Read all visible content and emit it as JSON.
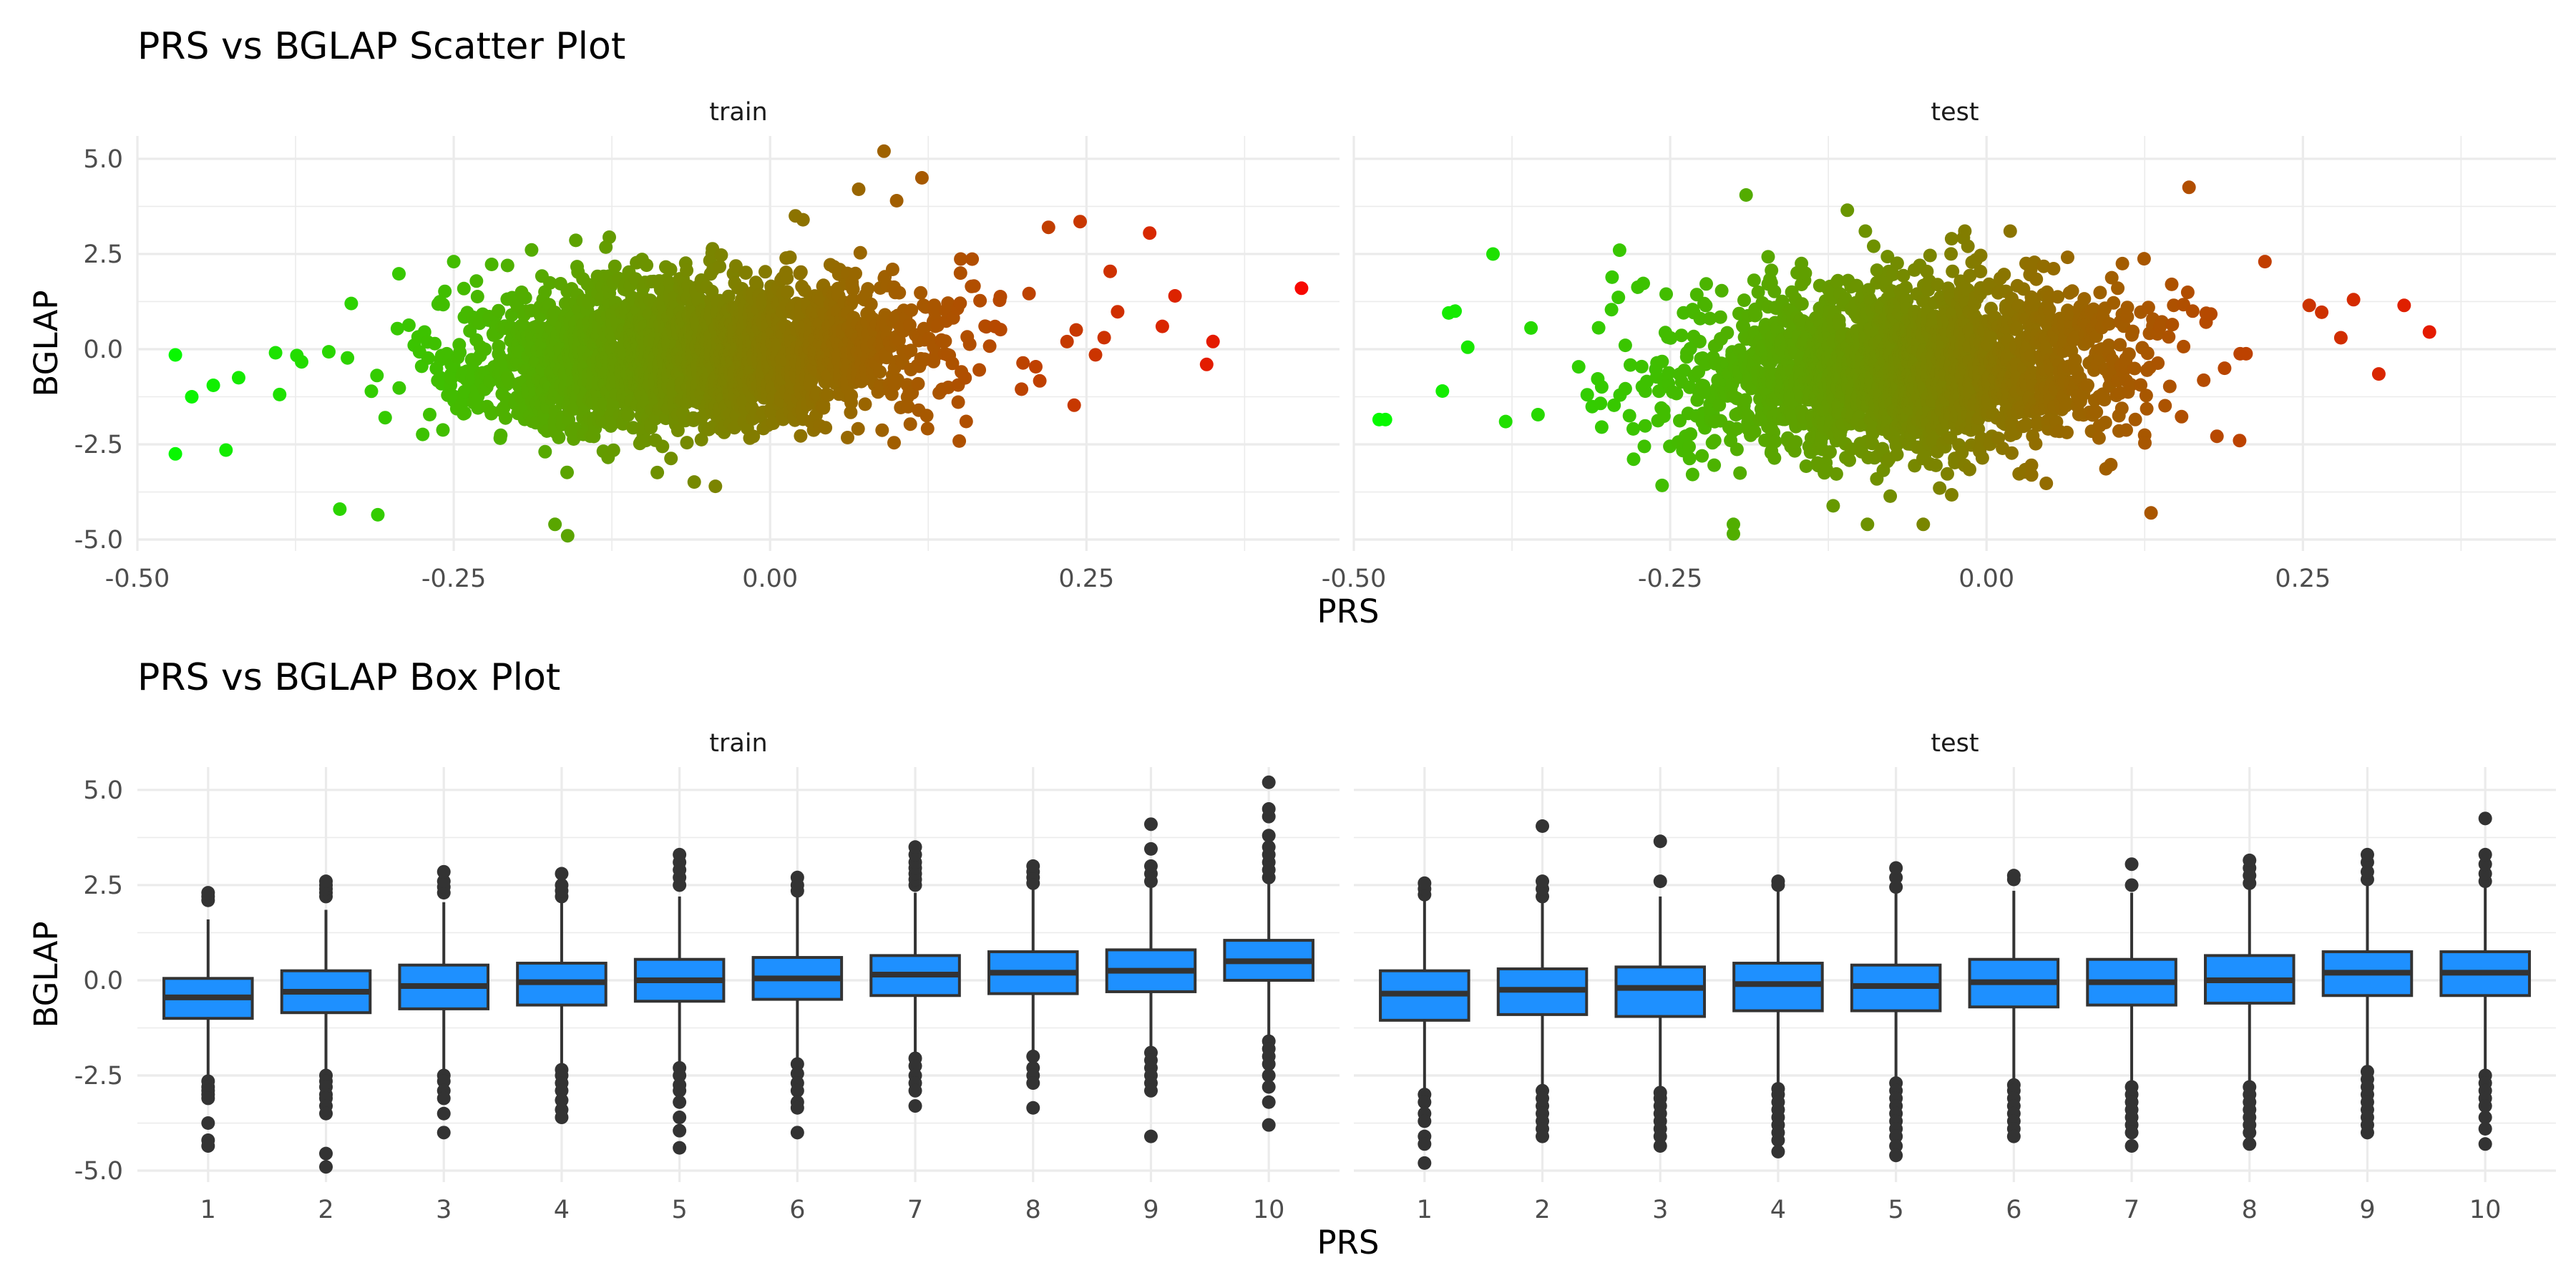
{
  "chart_data": [
    {
      "type": "scatter",
      "title": "PRS vs BGLAP Scatter Plot",
      "xlabel": "PRS",
      "ylabel": "BGLAP",
      "xlim": [
        -0.5,
        0.45
      ],
      "ylim": [
        -5.3,
        5.6
      ],
      "x_ticks": [
        "-0.50",
        "-0.25",
        "0.00",
        "0.25"
      ],
      "y_ticks": [
        "-5.0",
        "-2.5",
        "0.0",
        "2.5",
        "5.0"
      ],
      "grid": true,
      "color_scale": {
        "low": "#00ff00",
        "high": "#ff0000",
        "mapped_to": "PRS",
        "legend": "none"
      },
      "facets": [
        {
          "label": "train",
          "cloud": {
            "n": 2600,
            "x_mean": -0.06,
            "x_sd": 0.095,
            "x_min": -0.4,
            "x_max": 0.33,
            "y_intercept": 0.0,
            "y_slope": 1.6,
            "y_sd": 0.95,
            "y_min": -4.2,
            "y_max": 3.4
          },
          "points": [
            {
              "x": -0.47,
              "y": -0.15
            },
            {
              "x": -0.47,
              "y": -2.75
            },
            {
              "x": -0.457,
              "y": -1.25
            },
            {
              "x": -0.43,
              "y": -2.65
            },
            {
              "x": -0.44,
              "y": -0.95
            },
            {
              "x": -0.42,
              "y": -0.75
            },
            {
              "x": -0.31,
              "y": -4.35
            },
            {
              "x": -0.34,
              "y": -4.2
            },
            {
              "x": -0.17,
              "y": -4.6
            },
            {
              "x": -0.16,
              "y": -4.9
            },
            {
              "x": 0.09,
              "y": 5.2
            },
            {
              "x": 0.12,
              "y": 4.5
            },
            {
              "x": 0.07,
              "y": 4.2
            },
            {
              "x": 0.1,
              "y": 3.9
            },
            {
              "x": 0.42,
              "y": 1.6
            },
            {
              "x": 0.35,
              "y": 0.2
            },
            {
              "x": 0.345,
              "y": -0.4
            },
            {
              "x": 0.3,
              "y": 3.05
            },
            {
              "x": 0.32,
              "y": 1.4
            },
            {
              "x": 0.31,
              "y": 0.6
            },
            {
              "x": 0.245,
              "y": 3.35
            },
            {
              "x": 0.22,
              "y": 3.2
            },
            {
              "x": -0.25,
              "y": 2.3
            },
            {
              "x": 0.02,
              "y": 3.5
            }
          ]
        },
        {
          "label": "test",
          "cloud": {
            "n": 2400,
            "x_mean": -0.07,
            "x_sd": 0.085,
            "x_min": -0.36,
            "x_max": 0.27,
            "y_intercept": -0.35,
            "y_slope": 1.9,
            "y_sd": 1.1,
            "y_min": -4.6,
            "y_max": 3.1
          },
          "points": [
            {
              "x": -0.48,
              "y": -1.85
            },
            {
              "x": -0.475,
              "y": -1.85
            },
            {
              "x": -0.43,
              "y": -1.1
            },
            {
              "x": -0.42,
              "y": 1.0
            },
            {
              "x": -0.425,
              "y": 0.95
            },
            {
              "x": -0.41,
              "y": 0.05
            },
            {
              "x": -0.38,
              "y": -1.9
            },
            {
              "x": -0.39,
              "y": 2.5
            },
            {
              "x": -0.29,
              "y": 2.6
            },
            {
              "x": -0.19,
              "y": 4.05
            },
            {
              "x": -0.11,
              "y": 3.65
            },
            {
              "x": 0.16,
              "y": 4.25
            },
            {
              "x": 0.35,
              "y": 0.45
            },
            {
              "x": 0.33,
              "y": 1.15
            },
            {
              "x": 0.31,
              "y": -0.65
            },
            {
              "x": 0.29,
              "y": 1.3
            },
            {
              "x": 0.28,
              "y": 0.3
            },
            {
              "x": 0.255,
              "y": 1.15
            },
            {
              "x": -0.2,
              "y": -4.85
            },
            {
              "x": -0.2,
              "y": -4.6
            },
            {
              "x": -0.05,
              "y": -4.6
            },
            {
              "x": 0.13,
              "y": -4.3
            },
            {
              "x": 0.22,
              "y": 2.3
            },
            {
              "x": 0.2,
              "y": -2.4
            }
          ]
        }
      ]
    },
    {
      "type": "box",
      "title": "PRS vs BGLAP Box Plot",
      "xlabel": "PRS",
      "ylabel": "BGLAP",
      "categories": [
        "1",
        "2",
        "3",
        "4",
        "5",
        "6",
        "7",
        "8",
        "9",
        "10"
      ],
      "ylim": [
        -5.3,
        5.6
      ],
      "y_ticks": [
        "-5.0",
        "-2.5",
        "0.0",
        "2.5",
        "5.0"
      ],
      "grid": true,
      "box_color": "#1e90ff",
      "line_color": "#333333",
      "facets": [
        {
          "label": "train",
          "boxes": [
            {
              "q1": -1.0,
              "median": -0.45,
              "q3": 0.05,
              "lower": -2.55,
              "upper": 1.6,
              "outliers": [
                -2.65,
                -2.8,
                -2.9,
                -3.0,
                -3.1,
                -3.75,
                -4.2,
                -4.35,
                2.1,
                2.2,
                2.3
              ]
            },
            {
              "q1": -0.85,
              "median": -0.3,
              "q3": 0.25,
              "lower": -2.45,
              "upper": 1.85,
              "outliers": [
                -2.5,
                -2.65,
                -2.8,
                -3.0,
                -3.1,
                -3.3,
                -3.5,
                -4.55,
                -4.9,
                2.2,
                2.3,
                2.4,
                2.5,
                2.6
              ]
            },
            {
              "q1": -0.75,
              "median": -0.15,
              "q3": 0.4,
              "lower": -2.4,
              "upper": 2.05,
              "outliers": [
                -2.5,
                -2.65,
                -2.9,
                -3.1,
                -3.5,
                -4.0,
                2.3,
                2.45,
                2.6,
                2.85
              ]
            },
            {
              "q1": -0.65,
              "median": -0.05,
              "q3": 0.45,
              "lower": -2.3,
              "upper": 2.1,
              "outliers": [
                -2.35,
                -2.5,
                -2.7,
                -2.9,
                -3.15,
                -3.4,
                -3.6,
                2.2,
                2.35,
                2.5,
                2.8
              ]
            },
            {
              "q1": -0.55,
              "median": 0.0,
              "q3": 0.55,
              "lower": -2.2,
              "upper": 2.2,
              "outliers": [
                -2.3,
                -2.5,
                -2.75,
                -2.9,
                -3.2,
                -3.6,
                -3.95,
                -4.4,
                2.5,
                2.7,
                2.9,
                3.1,
                3.3
              ]
            },
            {
              "q1": -0.5,
              "median": 0.05,
              "q3": 0.6,
              "lower": -2.1,
              "upper": 2.25,
              "outliers": [
                -2.2,
                -2.45,
                -2.7,
                -2.9,
                -3.2,
                -3.35,
                -4.0,
                2.35,
                2.5,
                2.7
              ]
            },
            {
              "q1": -0.4,
              "median": 0.15,
              "q3": 0.65,
              "lower": -1.95,
              "upper": 2.3,
              "outliers": [
                -2.05,
                -2.25,
                -2.5,
                -2.7,
                -2.9,
                -3.3,
                2.5,
                2.65,
                2.8,
                2.95,
                3.1,
                3.3,
                3.5
              ]
            },
            {
              "q1": -0.35,
              "median": 0.2,
              "q3": 0.75,
              "lower": -1.9,
              "upper": 2.4,
              "outliers": [
                -2.0,
                -2.3,
                -2.5,
                -2.7,
                -3.35,
                2.55,
                2.7,
                2.85,
                3.0
              ]
            },
            {
              "q1": -0.3,
              "median": 0.25,
              "q3": 0.8,
              "lower": -1.8,
              "upper": 2.45,
              "outliers": [
                -1.9,
                -2.1,
                -2.3,
                -2.5,
                -2.7,
                -2.9,
                -4.1,
                2.6,
                2.8,
                3.0,
                3.45,
                4.1
              ]
            },
            {
              "q1": 0.0,
              "median": 0.5,
              "q3": 1.05,
              "lower": -1.5,
              "upper": 2.6,
              "outliers": [
                -1.6,
                -1.8,
                -2.0,
                -2.2,
                -2.5,
                -2.8,
                -3.2,
                -3.8,
                2.7,
                2.9,
                3.1,
                3.3,
                3.5,
                3.8,
                4.3,
                4.5,
                5.2
              ]
            }
          ]
        },
        {
          "label": "test",
          "boxes": [
            {
              "q1": -1.05,
              "median": -0.35,
              "q3": 0.25,
              "lower": -2.9,
              "upper": 2.1,
              "outliers": [
                -3.0,
                -3.2,
                -3.5,
                -3.7,
                -4.1,
                -4.3,
                -4.8,
                2.25,
                2.4,
                2.55
              ]
            },
            {
              "q1": -0.9,
              "median": -0.25,
              "q3": 0.3,
              "lower": -2.8,
              "upper": 2.05,
              "outliers": [
                -2.9,
                -3.1,
                -3.3,
                -3.5,
                -3.7,
                -3.9,
                -4.1,
                2.2,
                2.4,
                2.6,
                4.05
              ]
            },
            {
              "q1": -0.95,
              "median": -0.2,
              "q3": 0.35,
              "lower": -2.85,
              "upper": 2.2,
              "outliers": [
                -2.95,
                -3.1,
                -3.3,
                -3.5,
                -3.7,
                -3.9,
                -4.1,
                -4.35,
                2.6,
                3.65
              ]
            },
            {
              "q1": -0.8,
              "median": -0.1,
              "q3": 0.45,
              "lower": -2.75,
              "upper": 2.35,
              "outliers": [
                -2.85,
                -3.0,
                -3.2,
                -3.4,
                -3.6,
                -3.8,
                -4.0,
                -4.2,
                -4.5,
                2.5,
                2.6
              ]
            },
            {
              "q1": -0.8,
              "median": -0.15,
              "q3": 0.4,
              "lower": -2.6,
              "upper": 2.3,
              "outliers": [
                -2.7,
                -2.9,
                -3.1,
                -3.3,
                -3.5,
                -3.7,
                -3.9,
                -4.1,
                -4.35,
                -4.6,
                2.45,
                2.7,
                2.95
              ]
            },
            {
              "q1": -0.7,
              "median": -0.05,
              "q3": 0.55,
              "lower": -2.65,
              "upper": 2.35,
              "outliers": [
                -2.75,
                -2.9,
                -3.1,
                -3.3,
                -3.5,
                -3.7,
                -3.9,
                -4.1,
                2.65,
                2.75
              ]
            },
            {
              "q1": -0.65,
              "median": -0.05,
              "q3": 0.55,
              "lower": -2.7,
              "upper": 2.3,
              "outliers": [
                -2.8,
                -3.0,
                -3.2,
                -3.4,
                -3.6,
                -3.8,
                -4.0,
                -4.35,
                2.5,
                3.05
              ]
            },
            {
              "q1": -0.6,
              "median": 0.0,
              "q3": 0.65,
              "lower": -2.7,
              "upper": 2.4,
              "outliers": [
                -2.8,
                -3.0,
                -3.2,
                -3.4,
                -3.6,
                -3.8,
                -4.0,
                -4.3,
                2.55,
                2.75,
                2.95,
                3.15
              ]
            },
            {
              "q1": -0.4,
              "median": 0.2,
              "q3": 0.75,
              "lower": -2.3,
              "upper": 2.5,
              "outliers": [
                -2.4,
                -2.6,
                -2.8,
                -3.0,
                -3.2,
                -3.4,
                -3.6,
                -3.8,
                -4.0,
                2.65,
                2.85,
                3.1,
                3.3
              ]
            },
            {
              "q1": -0.4,
              "median": 0.2,
              "q3": 0.75,
              "lower": -2.4,
              "upper": 2.5,
              "outliers": [
                -2.5,
                -2.7,
                -2.9,
                -3.1,
                -3.3,
                -3.6,
                -3.9,
                -4.3,
                2.6,
                2.8,
                3.05,
                3.3,
                4.25
              ]
            }
          ]
        }
      ]
    }
  ]
}
